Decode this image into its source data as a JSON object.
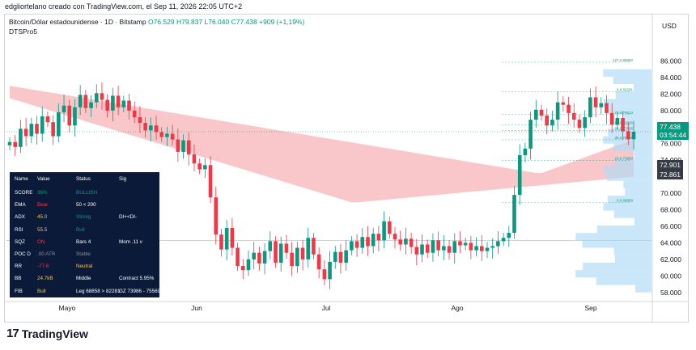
{
  "caption": "edgliortelano creado con TradingView.com, el Sep 11, 2026 22:05 UTC+2",
  "header": {
    "symbol": "Bitcoin/Dólar estadounidense · 1D · Bitstamp",
    "open": "O76.529",
    "high": "H79.837",
    "low": "L76.040",
    "close": "C77.438",
    "change": "+909 (+1,19%)",
    "indicator": "DTSPro5"
  },
  "currency": "USD",
  "price_labels": {
    "last": "77.438",
    "countdown": "03:54:44",
    "ma1": "72.901",
    "ma2": "72.861"
  },
  "fib_labels": [
    "127.2 85852",
    "0.0 82281",
    "78.6 79513",
    "61.8 78265",
    "50.0 77566",
    "38.2 76466",
    "23.6 73950",
    "0.0 68858"
  ],
  "colors": {
    "up": "#089981",
    "down": "#f23645",
    "cloud": "#f7b4b8",
    "panel": "#0c1a3a"
  },
  "chart_data": {
    "type": "candlestick",
    "symbol": "BTC/USD",
    "timeframe": "1D",
    "y_range": [
      57000,
      88000
    ],
    "y_ticks": [
      "58.000",
      "60.000",
      "62.000",
      "64.000",
      "66.000",
      "68.000",
      "70.000",
      "72.000",
      "74.000",
      "76.000",
      "78.000",
      "80.000",
      "82.000",
      "84.000",
      "86.000"
    ],
    "x_ticks": [
      "Mayo",
      "Jun",
      "Jul",
      "Ago",
      "Sep"
    ],
    "last_price": 77438,
    "fib_levels": [
      {
        "label": "127.2 85852",
        "value": 85852
      },
      {
        "label": "0.0 82281",
        "value": 82281
      },
      {
        "label": "78.6 79513",
        "value": 79513
      },
      {
        "label": "61.8 78265",
        "value": 78265
      },
      {
        "label": "50.0 77566",
        "value": 77566
      },
      {
        "label": "38.2 76466",
        "value": 76466
      },
      {
        "label": "23.6 73950",
        "value": 73950
      },
      {
        "label": "0.0 68858",
        "value": 68858
      }
    ],
    "closes": [
      76200,
      75600,
      77800,
      76900,
      78400,
      77200,
      79300,
      78600,
      76900,
      79800,
      80600,
      78200,
      80400,
      81900,
      80300,
      81000,
      82100,
      81300,
      80000,
      81800,
      80400,
      81200,
      80000,
      79200,
      78500,
      77600,
      78200,
      77400,
      76800,
      77200,
      76500,
      75000,
      76400,
      74700,
      73600,
      72900,
      73400,
      69500,
      65000,
      63200,
      65800,
      63400,
      61200,
      60700,
      62000,
      62800,
      61500,
      63000,
      64200,
      61600,
      63900,
      62800,
      61200,
      63400,
      62000,
      64600,
      62600,
      60800,
      59600,
      61700,
      62900,
      61600,
      63100,
      64200,
      63400,
      64700,
      63600,
      65100,
      64300,
      66600,
      65100,
      64400,
      63800,
      64500,
      63500,
      62600,
      63800,
      62800,
      64300,
      63100,
      63600,
      62800,
      64200,
      63700,
      64000,
      63100,
      63600,
      63000,
      63400,
      63600,
      64200,
      64600,
      65200,
      69800,
      74600,
      75400,
      78900,
      80100,
      79400,
      78200,
      78900,
      81000,
      80700,
      79700,
      78900,
      77900,
      79200,
      81600,
      80400,
      80900,
      79700,
      78300,
      79100,
      77500,
      76529,
      77438
    ],
    "ohlc_note": "Last bar O76.529 H79.837 L76.040 C77.438",
    "table": {
      "headers": [
        "Name",
        "Value",
        "Status",
        "Sig"
      ],
      "rows": [
        [
          "SCORE",
          "36%",
          "BULLISH",
          ""
        ],
        [
          "EMA",
          "Bear",
          "50 < 200",
          ""
        ],
        [
          "ADX",
          "45.0",
          "Strong",
          "DI+<DI-"
        ],
        [
          "RSI",
          "55.5",
          "Bull",
          ""
        ],
        [
          "SQZ",
          "ON",
          "Bars 4",
          "Mom .11 v"
        ],
        [
          "POC D",
          ".00 ATR",
          "Stable",
          ""
        ],
        [
          "RR",
          "-77.6",
          "Neutral",
          ""
        ],
        [
          "BB",
          "24.7kB",
          "Middle",
          "Contract 5.95%"
        ],
        [
          "FIB",
          "Bull",
          "Leg 68858 > 82281",
          "GZ 73986 - 75569"
        ]
      ]
    }
  },
  "brand": "TradingView"
}
